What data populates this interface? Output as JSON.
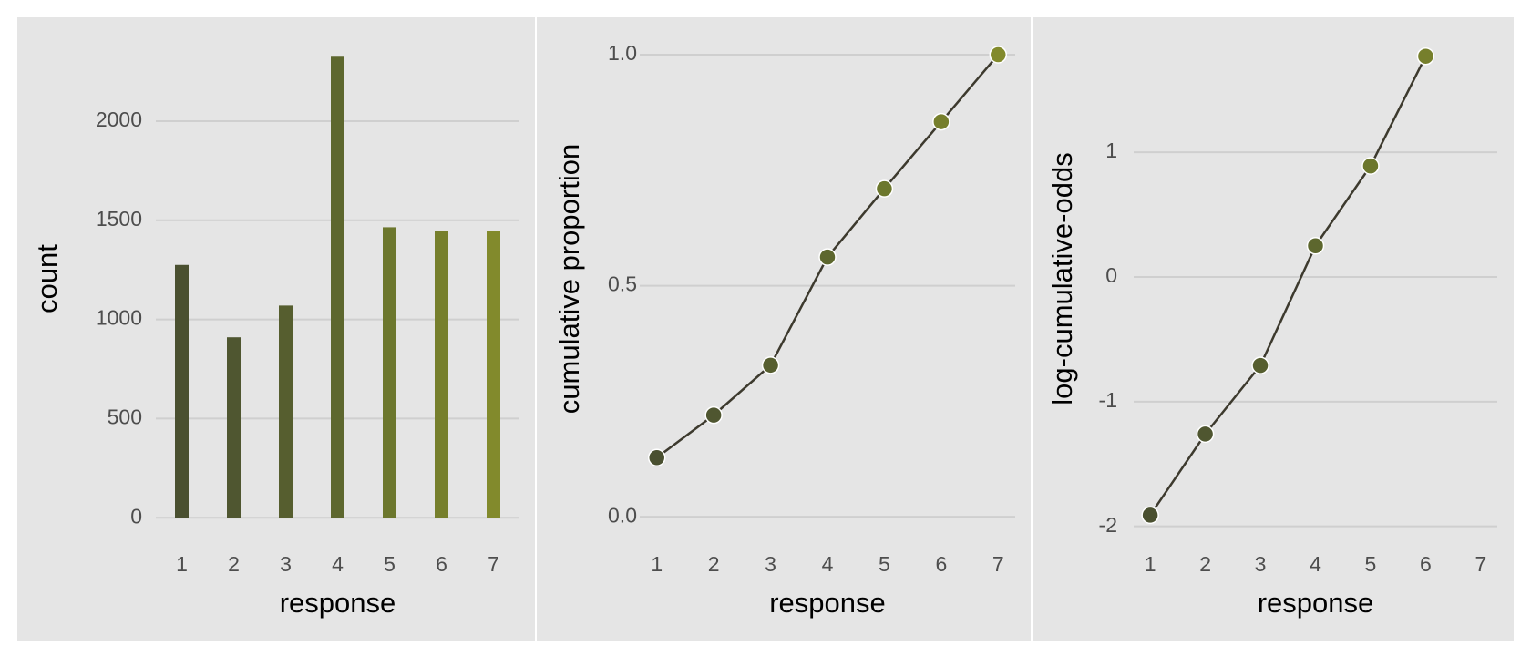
{
  "chart_data": [
    {
      "type": "bar",
      "x_label": "response",
      "y_label": "count",
      "categories": [
        "1",
        "2",
        "3",
        "4",
        "5",
        "6",
        "7"
      ],
      "values": [
        1275,
        910,
        1070,
        2325,
        1465,
        1445,
        1445
      ],
      "colors": [
        "#4a5030",
        "#4f5630",
        "#565e2f",
        "#5d672e",
        "#6c772d",
        "#767f2c",
        "#828a2c"
      ],
      "ylim": [
        -100,
        2510
      ],
      "yticks": [
        0,
        500,
        1000,
        1500,
        2000
      ],
      "grid": true
    },
    {
      "type": "line",
      "x_label": "response",
      "y_label": "cumulative proportion",
      "x": [
        1,
        2,
        3,
        4,
        5,
        6,
        7
      ],
      "values": [
        0.128,
        0.22,
        0.328,
        0.562,
        0.71,
        0.855,
        1.0
      ],
      "color": "#3d3a2e",
      "point_colors": [
        "#4a5030",
        "#4f5630",
        "#565e2f",
        "#5d672e",
        "#6c772d",
        "#767f2c",
        "#828a2c"
      ],
      "xlim": [
        0.7,
        7.3
      ],
      "xticks": [
        1,
        2,
        3,
        4,
        5,
        6,
        7
      ],
      "ylim": [
        -0.045,
        1.075
      ],
      "yticks": [
        {
          "value": 0,
          "label": "0.0"
        },
        0.5,
        {
          "value": 1,
          "label": "1.0"
        }
      ],
      "grid": true
    },
    {
      "type": "line",
      "x_label": "response",
      "y_label": "log-cumulative-odds",
      "x": [
        1,
        2,
        3,
        4,
        5,
        6,
        7
      ],
      "values": [
        -1.91,
        -1.26,
        -0.71,
        0.25,
        0.89,
        1.77,
        null
      ],
      "color": "#3d3a2e",
      "point_colors": [
        "#4a5030",
        "#4f5630",
        "#565e2f",
        "#5d672e",
        "#6c772d",
        "#767f2c",
        "#828a2c"
      ],
      "xlim": [
        0.7,
        7.3
      ],
      "xticks": [
        1,
        2,
        3,
        4,
        5,
        6,
        7
      ],
      "ylim": [
        -2.09,
        2.06
      ],
      "yticks": [
        -2,
        -1,
        0,
        1
      ],
      "grid": true
    }
  ]
}
